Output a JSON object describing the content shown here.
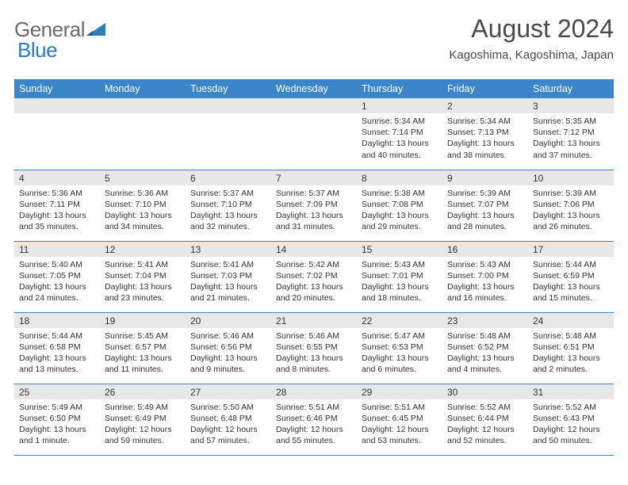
{
  "logo": {
    "text1": "General",
    "text2": "Blue"
  },
  "title": "August 2024",
  "location": "Kagoshima, Kagoshima, Japan",
  "colors": {
    "header_bg": "#3a86c8",
    "header_text": "#ffffff",
    "day_num_bg": "#e8e8e8",
    "divider": "#3a86c8",
    "logo_gray": "#6a6a6a",
    "logo_blue": "#2e7cc0"
  },
  "day_headers": [
    "Sunday",
    "Monday",
    "Tuesday",
    "Wednesday",
    "Thursday",
    "Friday",
    "Saturday"
  ],
  "weeks": [
    [
      null,
      null,
      null,
      null,
      {
        "n": "1",
        "sunrise": "5:34 AM",
        "sunset": "7:14 PM",
        "daylight": "13 hours and 40 minutes."
      },
      {
        "n": "2",
        "sunrise": "5:34 AM",
        "sunset": "7:13 PM",
        "daylight": "13 hours and 38 minutes."
      },
      {
        "n": "3",
        "sunrise": "5:35 AM",
        "sunset": "7:12 PM",
        "daylight": "13 hours and 37 minutes."
      }
    ],
    [
      {
        "n": "4",
        "sunrise": "5:36 AM",
        "sunset": "7:11 PM",
        "daylight": "13 hours and 35 minutes."
      },
      {
        "n": "5",
        "sunrise": "5:36 AM",
        "sunset": "7:10 PM",
        "daylight": "13 hours and 34 minutes."
      },
      {
        "n": "6",
        "sunrise": "5:37 AM",
        "sunset": "7:10 PM",
        "daylight": "13 hours and 32 minutes."
      },
      {
        "n": "7",
        "sunrise": "5:37 AM",
        "sunset": "7:09 PM",
        "daylight": "13 hours and 31 minutes."
      },
      {
        "n": "8",
        "sunrise": "5:38 AM",
        "sunset": "7:08 PM",
        "daylight": "13 hours and 29 minutes."
      },
      {
        "n": "9",
        "sunrise": "5:39 AM",
        "sunset": "7:07 PM",
        "daylight": "13 hours and 28 minutes."
      },
      {
        "n": "10",
        "sunrise": "5:39 AM",
        "sunset": "7:06 PM",
        "daylight": "13 hours and 26 minutes."
      }
    ],
    [
      {
        "n": "11",
        "sunrise": "5:40 AM",
        "sunset": "7:05 PM",
        "daylight": "13 hours and 24 minutes."
      },
      {
        "n": "12",
        "sunrise": "5:41 AM",
        "sunset": "7:04 PM",
        "daylight": "13 hours and 23 minutes."
      },
      {
        "n": "13",
        "sunrise": "5:41 AM",
        "sunset": "7:03 PM",
        "daylight": "13 hours and 21 minutes."
      },
      {
        "n": "14",
        "sunrise": "5:42 AM",
        "sunset": "7:02 PM",
        "daylight": "13 hours and 20 minutes."
      },
      {
        "n": "15",
        "sunrise": "5:43 AM",
        "sunset": "7:01 PM",
        "daylight": "13 hours and 18 minutes."
      },
      {
        "n": "16",
        "sunrise": "5:43 AM",
        "sunset": "7:00 PM",
        "daylight": "13 hours and 16 minutes."
      },
      {
        "n": "17",
        "sunrise": "5:44 AM",
        "sunset": "6:59 PM",
        "daylight": "13 hours and 15 minutes."
      }
    ],
    [
      {
        "n": "18",
        "sunrise": "5:44 AM",
        "sunset": "6:58 PM",
        "daylight": "13 hours and 13 minutes."
      },
      {
        "n": "19",
        "sunrise": "5:45 AM",
        "sunset": "6:57 PM",
        "daylight": "13 hours and 11 minutes."
      },
      {
        "n": "20",
        "sunrise": "5:46 AM",
        "sunset": "6:56 PM",
        "daylight": "13 hours and 9 minutes."
      },
      {
        "n": "21",
        "sunrise": "5:46 AM",
        "sunset": "6:55 PM",
        "daylight": "13 hours and 8 minutes."
      },
      {
        "n": "22",
        "sunrise": "5:47 AM",
        "sunset": "6:53 PM",
        "daylight": "13 hours and 6 minutes."
      },
      {
        "n": "23",
        "sunrise": "5:48 AM",
        "sunset": "6:52 PM",
        "daylight": "13 hours and 4 minutes."
      },
      {
        "n": "24",
        "sunrise": "5:48 AM",
        "sunset": "6:51 PM",
        "daylight": "13 hours and 2 minutes."
      }
    ],
    [
      {
        "n": "25",
        "sunrise": "5:49 AM",
        "sunset": "6:50 PM",
        "daylight": "13 hours and 1 minute."
      },
      {
        "n": "26",
        "sunrise": "5:49 AM",
        "sunset": "6:49 PM",
        "daylight": "12 hours and 59 minutes."
      },
      {
        "n": "27",
        "sunrise": "5:50 AM",
        "sunset": "6:48 PM",
        "daylight": "12 hours and 57 minutes."
      },
      {
        "n": "28",
        "sunrise": "5:51 AM",
        "sunset": "6:46 PM",
        "daylight": "12 hours and 55 minutes."
      },
      {
        "n": "29",
        "sunrise": "5:51 AM",
        "sunset": "6:45 PM",
        "daylight": "12 hours and 53 minutes."
      },
      {
        "n": "30",
        "sunrise": "5:52 AM",
        "sunset": "6:44 PM",
        "daylight": "12 hours and 52 minutes."
      },
      {
        "n": "31",
        "sunrise": "5:52 AM",
        "sunset": "6:43 PM",
        "daylight": "12 hours and 50 minutes."
      }
    ]
  ],
  "labels": {
    "sunrise": "Sunrise: ",
    "sunset": "Sunset: ",
    "daylight": "Daylight: "
  }
}
